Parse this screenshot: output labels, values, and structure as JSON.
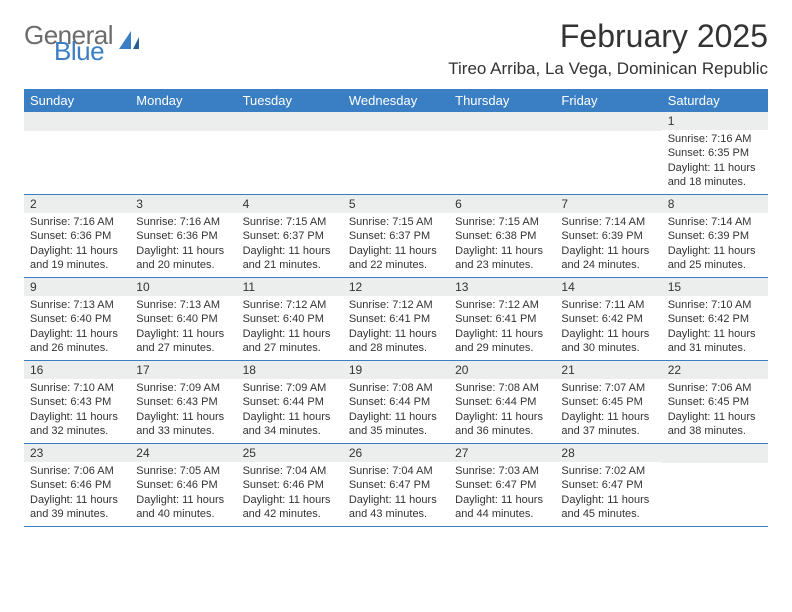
{
  "logo": {
    "general": "General",
    "blue": "Blue"
  },
  "title": "February 2025",
  "location": "Tireo Arriba, La Vega, Dominican Republic",
  "colors": {
    "brand_blue": "#3a7fc4",
    "header_text": "#333333",
    "logo_gray": "#6c6c6c",
    "row_alt_bg": "#eceded",
    "background": "#ffffff"
  },
  "weekdays": [
    "Sunday",
    "Monday",
    "Tuesday",
    "Wednesday",
    "Thursday",
    "Friday",
    "Saturday"
  ],
  "weeks": [
    [
      {
        "n": "",
        "sr": "",
        "ss": "",
        "dl": ""
      },
      {
        "n": "",
        "sr": "",
        "ss": "",
        "dl": ""
      },
      {
        "n": "",
        "sr": "",
        "ss": "",
        "dl": ""
      },
      {
        "n": "",
        "sr": "",
        "ss": "",
        "dl": ""
      },
      {
        "n": "",
        "sr": "",
        "ss": "",
        "dl": ""
      },
      {
        "n": "",
        "sr": "",
        "ss": "",
        "dl": ""
      },
      {
        "n": "1",
        "sr": "Sunrise: 7:16 AM",
        "ss": "Sunset: 6:35 PM",
        "dl": "Daylight: 11 hours and 18 minutes."
      }
    ],
    [
      {
        "n": "2",
        "sr": "Sunrise: 7:16 AM",
        "ss": "Sunset: 6:36 PM",
        "dl": "Daylight: 11 hours and 19 minutes."
      },
      {
        "n": "3",
        "sr": "Sunrise: 7:16 AM",
        "ss": "Sunset: 6:36 PM",
        "dl": "Daylight: 11 hours and 20 minutes."
      },
      {
        "n": "4",
        "sr": "Sunrise: 7:15 AM",
        "ss": "Sunset: 6:37 PM",
        "dl": "Daylight: 11 hours and 21 minutes."
      },
      {
        "n": "5",
        "sr": "Sunrise: 7:15 AM",
        "ss": "Sunset: 6:37 PM",
        "dl": "Daylight: 11 hours and 22 minutes."
      },
      {
        "n": "6",
        "sr": "Sunrise: 7:15 AM",
        "ss": "Sunset: 6:38 PM",
        "dl": "Daylight: 11 hours and 23 minutes."
      },
      {
        "n": "7",
        "sr": "Sunrise: 7:14 AM",
        "ss": "Sunset: 6:39 PM",
        "dl": "Daylight: 11 hours and 24 minutes."
      },
      {
        "n": "8",
        "sr": "Sunrise: 7:14 AM",
        "ss": "Sunset: 6:39 PM",
        "dl": "Daylight: 11 hours and 25 minutes."
      }
    ],
    [
      {
        "n": "9",
        "sr": "Sunrise: 7:13 AM",
        "ss": "Sunset: 6:40 PM",
        "dl": "Daylight: 11 hours and 26 minutes."
      },
      {
        "n": "10",
        "sr": "Sunrise: 7:13 AM",
        "ss": "Sunset: 6:40 PM",
        "dl": "Daylight: 11 hours and 27 minutes."
      },
      {
        "n": "11",
        "sr": "Sunrise: 7:12 AM",
        "ss": "Sunset: 6:40 PM",
        "dl": "Daylight: 11 hours and 27 minutes."
      },
      {
        "n": "12",
        "sr": "Sunrise: 7:12 AM",
        "ss": "Sunset: 6:41 PM",
        "dl": "Daylight: 11 hours and 28 minutes."
      },
      {
        "n": "13",
        "sr": "Sunrise: 7:12 AM",
        "ss": "Sunset: 6:41 PM",
        "dl": "Daylight: 11 hours and 29 minutes."
      },
      {
        "n": "14",
        "sr": "Sunrise: 7:11 AM",
        "ss": "Sunset: 6:42 PM",
        "dl": "Daylight: 11 hours and 30 minutes."
      },
      {
        "n": "15",
        "sr": "Sunrise: 7:10 AM",
        "ss": "Sunset: 6:42 PM",
        "dl": "Daylight: 11 hours and 31 minutes."
      }
    ],
    [
      {
        "n": "16",
        "sr": "Sunrise: 7:10 AM",
        "ss": "Sunset: 6:43 PM",
        "dl": "Daylight: 11 hours and 32 minutes."
      },
      {
        "n": "17",
        "sr": "Sunrise: 7:09 AM",
        "ss": "Sunset: 6:43 PM",
        "dl": "Daylight: 11 hours and 33 minutes."
      },
      {
        "n": "18",
        "sr": "Sunrise: 7:09 AM",
        "ss": "Sunset: 6:44 PM",
        "dl": "Daylight: 11 hours and 34 minutes."
      },
      {
        "n": "19",
        "sr": "Sunrise: 7:08 AM",
        "ss": "Sunset: 6:44 PM",
        "dl": "Daylight: 11 hours and 35 minutes."
      },
      {
        "n": "20",
        "sr": "Sunrise: 7:08 AM",
        "ss": "Sunset: 6:44 PM",
        "dl": "Daylight: 11 hours and 36 minutes."
      },
      {
        "n": "21",
        "sr": "Sunrise: 7:07 AM",
        "ss": "Sunset: 6:45 PM",
        "dl": "Daylight: 11 hours and 37 minutes."
      },
      {
        "n": "22",
        "sr": "Sunrise: 7:06 AM",
        "ss": "Sunset: 6:45 PM",
        "dl": "Daylight: 11 hours and 38 minutes."
      }
    ],
    [
      {
        "n": "23",
        "sr": "Sunrise: 7:06 AM",
        "ss": "Sunset: 6:46 PM",
        "dl": "Daylight: 11 hours and 39 minutes."
      },
      {
        "n": "24",
        "sr": "Sunrise: 7:05 AM",
        "ss": "Sunset: 6:46 PM",
        "dl": "Daylight: 11 hours and 40 minutes."
      },
      {
        "n": "25",
        "sr": "Sunrise: 7:04 AM",
        "ss": "Sunset: 6:46 PM",
        "dl": "Daylight: 11 hours and 42 minutes."
      },
      {
        "n": "26",
        "sr": "Sunrise: 7:04 AM",
        "ss": "Sunset: 6:47 PM",
        "dl": "Daylight: 11 hours and 43 minutes."
      },
      {
        "n": "27",
        "sr": "Sunrise: 7:03 AM",
        "ss": "Sunset: 6:47 PM",
        "dl": "Daylight: 11 hours and 44 minutes."
      },
      {
        "n": "28",
        "sr": "Sunrise: 7:02 AM",
        "ss": "Sunset: 6:47 PM",
        "dl": "Daylight: 11 hours and 45 minutes."
      },
      {
        "n": "",
        "sr": "",
        "ss": "",
        "dl": ""
      }
    ]
  ]
}
